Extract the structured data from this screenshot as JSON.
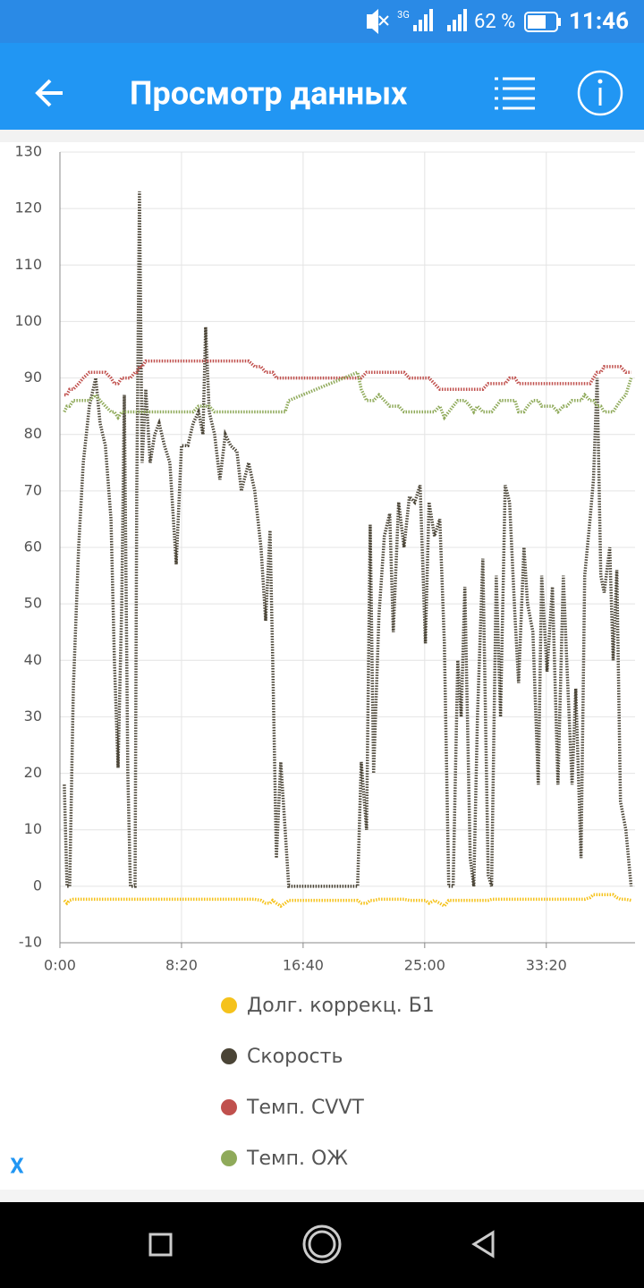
{
  "status_bar": {
    "network": "3G",
    "battery": "62 %",
    "time": "11:46"
  },
  "app_bar": {
    "title": "Просмотр данных"
  },
  "chart_data": {
    "type": "line",
    "x": [
      18,
      29,
      40,
      55,
      77,
      96,
      121,
      147,
      165,
      187,
      210,
      224,
      239,
      254,
      265,
      279,
      290,
      309,
      316,
      327,
      338,
      353,
      371,
      390,
      408,
      430,
      452,
      478,
      500,
      526,
      548,
      570,
      588,
      599,
      614,
      636,
      658,
      680,
      702,
      728,
      746,
      776,
      801,
      827,
      846,
      864,
      875,
      890,
      908,
      926,
      941,
      1224,
      1239,
      1261,
      1276,
      1290,
      1312,
      1334,
      1356,
      1371,
      1393,
      1415,
      1437,
      1459,
      1481,
      1503,
      1518,
      1540,
      1562,
      1581,
      1599,
      1617,
      1636,
      1650,
      1665,
      1687,
      1702,
      1717,
      1739,
      1761,
      1775,
      1794,
      1812,
      1831,
      1849,
      1871,
      1886,
      1908,
      1923,
      1945,
      1967,
      1981,
      2003,
      2025,
      2048,
      2070,
      2084,
      2106,
      2121,
      2143,
      2158,
      2180,
      2194,
      2209,
      2224,
      2238,
      2261,
      2275,
      2290,
      2305,
      2327,
      2349
    ],
    "series": [
      {
        "name": "Долг. коррекц. Б1",
        "color": "#f5c21b",
        "values": [
          -2.5,
          -3,
          -2.5,
          -2.3,
          -2.3,
          -2.3,
          -2.3,
          -2.3,
          -2.3,
          -2.3,
          -2.3,
          -2.3,
          -2.3,
          -2.3,
          -2.3,
          -2.3,
          -2.3,
          -2.3,
          -2.3,
          -2.3,
          -2.3,
          -2.3,
          -2.3,
          -2.3,
          -2.3,
          -2.3,
          -2.3,
          -2.3,
          -2.3,
          -2.3,
          -2.3,
          -2.3,
          -2.3,
          -2.3,
          -2.3,
          -2.3,
          -2.3,
          -2.3,
          -2.3,
          -2.3,
          -2.3,
          -2.3,
          -2.3,
          -2.5,
          -3,
          -3,
          -2.5,
          -3,
          -3.5,
          -3,
          -2.5,
          -2.5,
          -3,
          -3,
          -2.5,
          -2.5,
          -2.3,
          -2.3,
          -2.3,
          -2.3,
          -2.3,
          -2.3,
          -2.5,
          -2.5,
          -2.5,
          -2.5,
          -3,
          -2.5,
          -3,
          -3.5,
          -2.5,
          -2.5,
          -2.5,
          -2.5,
          -2.5,
          -2.5,
          -2.5,
          -2.5,
          -2.5,
          -2.5,
          -2.3,
          -2.3,
          -2.3,
          -2.3,
          -2.3,
          -2.3,
          -2.3,
          -2.3,
          -2.3,
          -2.3,
          -2.3,
          -2.3,
          -2.3,
          -2.3,
          -2.3,
          -2.3,
          -2.3,
          -2.3,
          -2.3,
          -2.3,
          -2.3,
          -2,
          -1.5,
          -1.5,
          -1.5,
          -1.5,
          -1.5,
          -1.5,
          -2,
          -2.3,
          -2.3,
          -2.5
        ]
      },
      {
        "name": "Скорость",
        "color": "#4a4436",
        "values": [
          18,
          0,
          0,
          35,
          60,
          75,
          85,
          90,
          82,
          78,
          65,
          40,
          21,
          50,
          87,
          20,
          0,
          0,
          70,
          123,
          75,
          88,
          75,
          80,
          82,
          78,
          75,
          57,
          78,
          78,
          82,
          84,
          80,
          99,
          84,
          80,
          72,
          80,
          78,
          77,
          70,
          75,
          70,
          60,
          47,
          63,
          40,
          5,
          22,
          10,
          0,
          0,
          22,
          10,
          64,
          20,
          48,
          62,
          66,
          45,
          68,
          60,
          69,
          68,
          71,
          43,
          68,
          62,
          65,
          43,
          0,
          0,
          40,
          30,
          53,
          5,
          0,
          30,
          58,
          2,
          0,
          55,
          30,
          71,
          68,
          48,
          36,
          60,
          50,
          45,
          18,
          55,
          38,
          53,
          18,
          55,
          40,
          18,
          35,
          5,
          55,
          65,
          72,
          90,
          55,
          52,
          60,
          40,
          56,
          15,
          10,
          0
        ]
      },
      {
        "name": "Темп. CVVT",
        "color": "#c0504d",
        "values": [
          87,
          87,
          88,
          88,
          89,
          90,
          91,
          91,
          91,
          91,
          90,
          89,
          89,
          90,
          90,
          90,
          90,
          91,
          91,
          92,
          92,
          93,
          93,
          93,
          93,
          93,
          93,
          93,
          93,
          93,
          93,
          93,
          93,
          93,
          93,
          93,
          93,
          93,
          93,
          93,
          93,
          93,
          92,
          92,
          91,
          91,
          91,
          90,
          90,
          90,
          90,
          90,
          90,
          91,
          91,
          91,
          91,
          91,
          91,
          91,
          91,
          91,
          90,
          90,
          90,
          90,
          90,
          89,
          88,
          88,
          88,
          88,
          88,
          88,
          88,
          88,
          88,
          88,
          88,
          89,
          89,
          89,
          89,
          89,
          90,
          90,
          89,
          89,
          89,
          89,
          89,
          89,
          89,
          89,
          89,
          89,
          89,
          89,
          89,
          89,
          89,
          89,
          90,
          91,
          91,
          92,
          92,
          92,
          92,
          92,
          91,
          91
        ]
      },
      {
        "name": "Темп. ОЖ",
        "color": "#8faa5a",
        "values": [
          84,
          85,
          85,
          86,
          86,
          86,
          86,
          87,
          86,
          85,
          84,
          84,
          83,
          84,
          84,
          84,
          84,
          84,
          84,
          84,
          84,
          84,
          84,
          84,
          84,
          84,
          84,
          84,
          84,
          84,
          84,
          85,
          85,
          85,
          85,
          84,
          84,
          84,
          84,
          84,
          84,
          84,
          84,
          84,
          84,
          84,
          84,
          84,
          84,
          84,
          86,
          91,
          88,
          86,
          86,
          86,
          87,
          86,
          85,
          85,
          85,
          84,
          84,
          84,
          84,
          84,
          84,
          84,
          85,
          83,
          84,
          85,
          86,
          86,
          86,
          85,
          84,
          85,
          84,
          84,
          84,
          85,
          86,
          86,
          86,
          86,
          84,
          84,
          85,
          86,
          86,
          85,
          85,
          85,
          84,
          85,
          85,
          86,
          86,
          86,
          87,
          86,
          86,
          85,
          85,
          84,
          84,
          84,
          85,
          86,
          87,
          90
        ]
      }
    ],
    "xlim": [
      0,
      2365
    ],
    "xticks": [
      {
        "value": 0,
        "label": "0:00"
      },
      {
        "value": 500,
        "label": "8:20"
      },
      {
        "value": 1000,
        "label": "16:40"
      },
      {
        "value": 1500,
        "label": "25:00"
      },
      {
        "value": 2000,
        "label": "33:20"
      }
    ],
    "ylim": [
      -10,
      130
    ],
    "yticks": [
      -10,
      0,
      10,
      20,
      30,
      40,
      50,
      60,
      70,
      80,
      90,
      100,
      110,
      120,
      130
    ],
    "grid": true
  },
  "footer": {
    "axis_toggle": "X"
  }
}
